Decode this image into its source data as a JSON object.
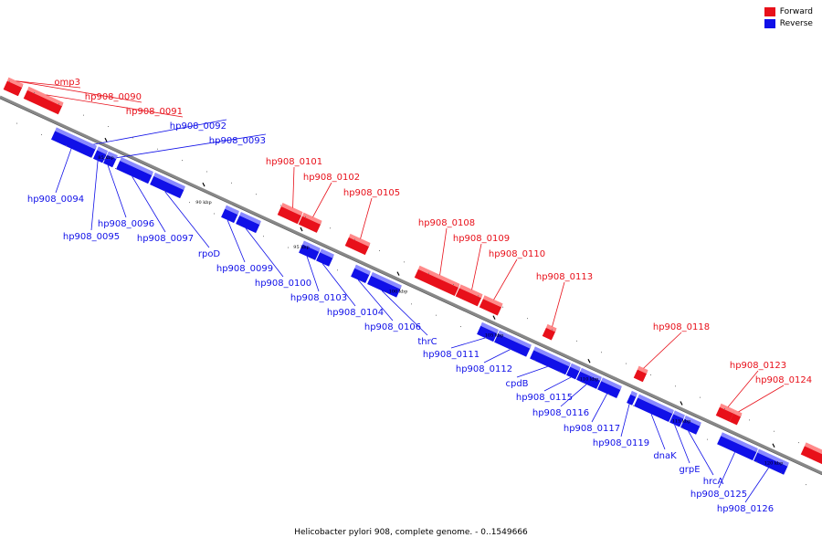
{
  "colors": {
    "forward": "#e8101a",
    "reverse": "#1010e8",
    "backbone": "#888888"
  },
  "legend": {
    "forward_label": "Forward",
    "reverse_label": "Reverse"
  },
  "caption": "Helicobacter pylori 908, complete genome. - 0..1549666",
  "genes": [
    {
      "name": "omp3",
      "strand": "forward"
    },
    {
      "name": "hp908_0090",
      "strand": "forward"
    },
    {
      "name": "hp908_0091",
      "strand": "forward"
    },
    {
      "name": "hp908_0092",
      "strand": "reverse"
    },
    {
      "name": "hp908_0093",
      "strand": "reverse"
    },
    {
      "name": "hp908_0094",
      "strand": "reverse"
    },
    {
      "name": "hp908_0095",
      "strand": "reverse"
    },
    {
      "name": "hp908_0096",
      "strand": "reverse"
    },
    {
      "name": "hp908_0097",
      "strand": "reverse"
    },
    {
      "name": "rpoD",
      "strand": "reverse"
    },
    {
      "name": "hp908_0099",
      "strand": "reverse"
    },
    {
      "name": "hp908_0100",
      "strand": "reverse"
    },
    {
      "name": "hp908_0101",
      "strand": "forward"
    },
    {
      "name": "hp908_0102",
      "strand": "forward"
    },
    {
      "name": "hp908_0103",
      "strand": "reverse"
    },
    {
      "name": "hp908_0104",
      "strand": "reverse"
    },
    {
      "name": "hp908_0105",
      "strand": "forward"
    },
    {
      "name": "hp908_0106",
      "strand": "reverse"
    },
    {
      "name": "thrC",
      "strand": "reverse"
    },
    {
      "name": "hp908_0108",
      "strand": "forward"
    },
    {
      "name": "hp908_0109",
      "strand": "forward"
    },
    {
      "name": "hp908_0110",
      "strand": "forward"
    },
    {
      "name": "hp908_0111",
      "strand": "reverse"
    },
    {
      "name": "hp908_0112",
      "strand": "reverse"
    },
    {
      "name": "hp908_0113",
      "strand": "forward"
    },
    {
      "name": "cpdB",
      "strand": "reverse"
    },
    {
      "name": "hp908_0115",
      "strand": "reverse"
    },
    {
      "name": "hp908_0116",
      "strand": "reverse"
    },
    {
      "name": "hp908_0117",
      "strand": "reverse"
    },
    {
      "name": "hp908_0118",
      "strand": "forward"
    },
    {
      "name": "hp908_0119",
      "strand": "reverse"
    },
    {
      "name": "dnaK",
      "strand": "reverse"
    },
    {
      "name": "grpE",
      "strand": "reverse"
    },
    {
      "name": "hrcA",
      "strand": "reverse"
    },
    {
      "name": "hp908_0123",
      "strand": "forward"
    },
    {
      "name": "hp908_0124",
      "strand": "forward"
    },
    {
      "name": "hp908_0125",
      "strand": "reverse"
    },
    {
      "name": "hp908_0126",
      "strand": "reverse"
    }
  ],
  "ticks": [
    "85 kbp",
    "90 kbp",
    "95 kbp",
    "100 kbp",
    "105 kbp",
    "110 kbp",
    "115 kbp",
    "120 kbp"
  ]
}
